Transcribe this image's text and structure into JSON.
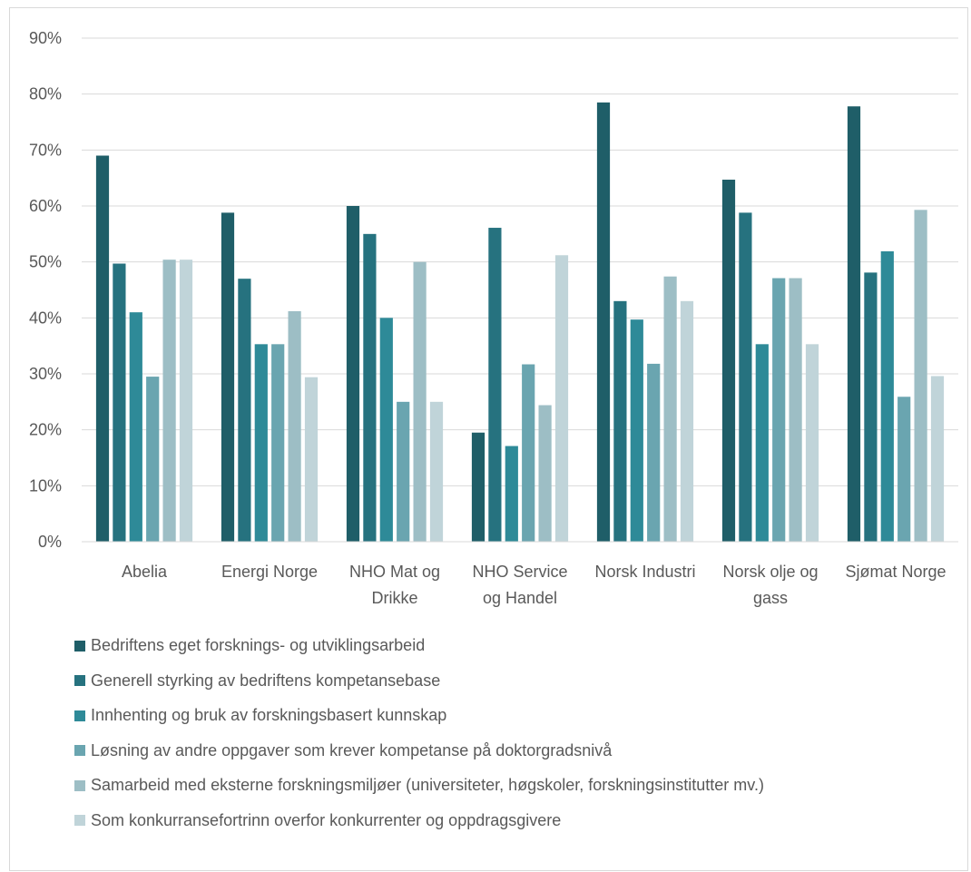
{
  "chart_data": {
    "type": "bar",
    "title": "",
    "xlabel": "",
    "ylabel": "",
    "ylim": [
      0,
      90
    ],
    "y_ticks": [
      "0%",
      "10%",
      "20%",
      "30%",
      "40%",
      "50%",
      "60%",
      "70%",
      "80%",
      "90%"
    ],
    "y_tick_values": [
      0,
      10,
      20,
      30,
      40,
      50,
      60,
      70,
      80,
      90
    ],
    "grid": true,
    "legend_position": "bottom",
    "categories": [
      [
        "Abelia"
      ],
      [
        "Energi Norge"
      ],
      [
        "NHO Mat og",
        "Drikke"
      ],
      [
        "NHO Service",
        "og Handel"
      ],
      [
        "Norsk Industri"
      ],
      [
        "Norsk olje og",
        "gass"
      ],
      [
        "Sjømat Norge"
      ]
    ],
    "series": [
      {
        "name": "Bedriftens eget forsknings- og utviklingsarbeid",
        "color": "#1f5e68",
        "values": [
          69,
          58.8,
          60,
          19.5,
          78.5,
          64.7,
          77.8
        ]
      },
      {
        "name": "Generell styrking av bedriftens kompetansebase",
        "color": "#26727f",
        "values": [
          49.7,
          47,
          55,
          56.1,
          43,
          58.8,
          48.1
        ]
      },
      {
        "name": "Innhenting og bruk av forskningsbasert kunnskap",
        "color": "#2e8a98",
        "values": [
          41,
          35.3,
          40,
          17.1,
          39.7,
          35.3,
          51.9
        ]
      },
      {
        "name": "Løsning av andre oppgaver som krever kompetanse på doktorgradsnivå",
        "color": "#6aa5b0",
        "values": [
          29.5,
          35.3,
          25,
          31.7,
          31.8,
          47.1,
          25.9
        ]
      },
      {
        "name": "Samarbeid med eksterne forskningsmiljøer (universiteter, høgskoler, forskningsinstitutter mv.)",
        "color": "#9dbec5",
        "values": [
          50.4,
          41.2,
          50,
          24.4,
          47.4,
          47.1,
          59.3
        ]
      },
      {
        "name": "Som konkurransefortrinn overfor konkurrenter og oppdragsgivere",
        "color": "#c0d4d9",
        "values": [
          50.4,
          29.4,
          25,
          51.2,
          43,
          35.3,
          29.6
        ]
      }
    ]
  }
}
